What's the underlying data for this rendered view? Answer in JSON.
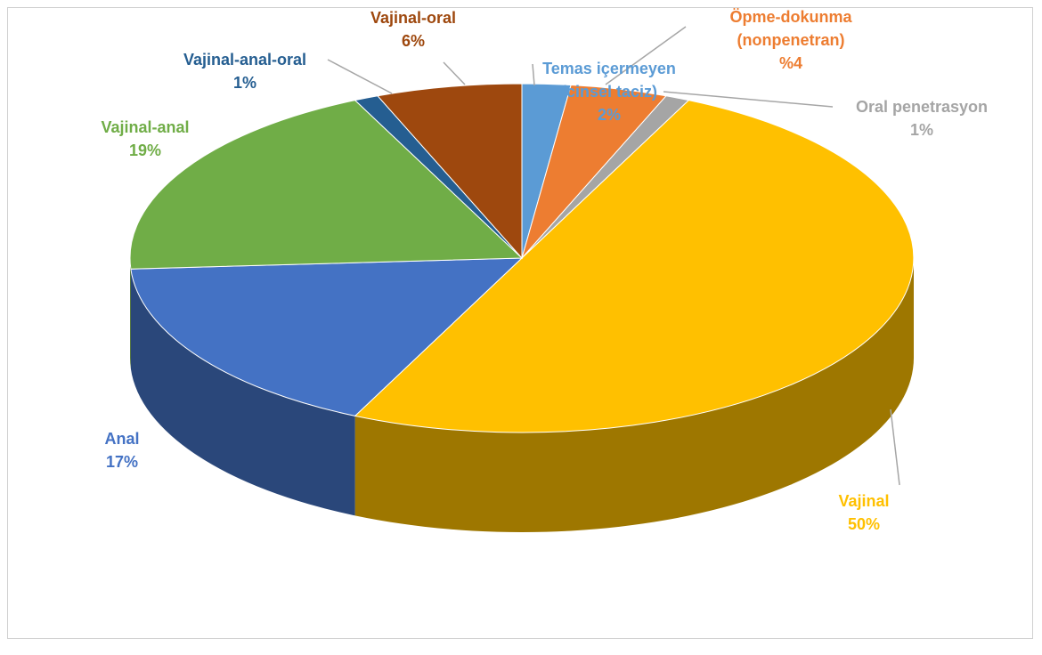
{
  "chart_data": {
    "type": "pie",
    "categories": [
      "Temas içermeyen (cinsel taciz)",
      "Öpme-dokunma (nonpenetran)",
      "Oral penetrasyon",
      "Vajinal",
      "Anal",
      "Vajinal-anal",
      "Vajinal-anal-oral",
      "Vajinal-oral"
    ],
    "values": [
      2,
      4,
      1,
      50,
      17,
      19,
      1,
      6
    ],
    "value_labels": [
      "2%",
      "%4",
      "1%",
      "50%",
      "17%",
      "19%",
      "1%",
      "6%"
    ],
    "colors": [
      "#5b9bd5",
      "#ed7d31",
      "#a5a5a5",
      "#ffc000",
      "#4472c4",
      "#70ad47",
      "#255e91",
      "#9e480e"
    ]
  }
}
